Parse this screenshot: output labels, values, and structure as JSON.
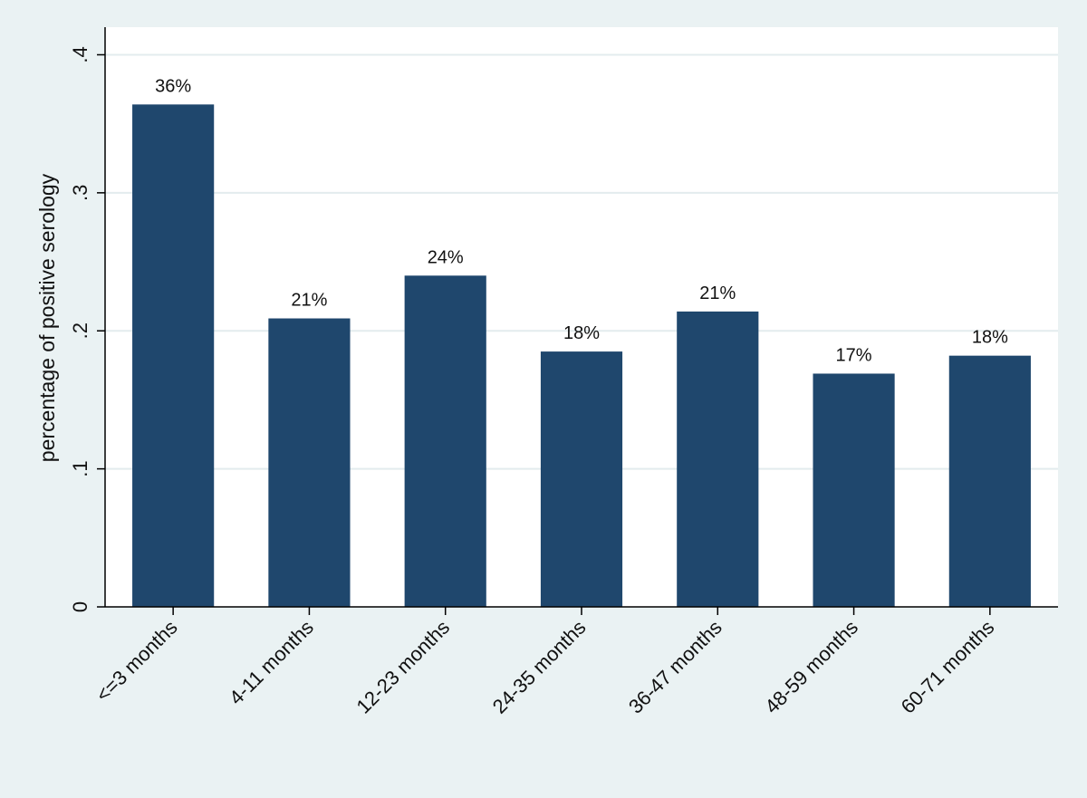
{
  "chart_data": {
    "type": "bar",
    "title": "",
    "xlabel": "",
    "ylabel": "percentage of positive serology",
    "categories": [
      "<=3 months",
      "4-11 months",
      "12-23 months",
      "24-35 months",
      "36-47 months",
      "48-59 months",
      "60-71 months"
    ],
    "values": [
      0.364,
      0.209,
      0.24,
      0.185,
      0.214,
      0.169,
      0.182
    ],
    "data_labels": [
      "36%",
      "21%",
      "24%",
      "18%",
      "21%",
      "17%",
      "18%"
    ],
    "ylim": [
      0,
      0.42
    ],
    "yticks": [
      0,
      0.1,
      0.2,
      0.3,
      0.4
    ],
    "ytick_labels": [
      "0",
      ".1",
      ".2",
      ".3",
      ".4"
    ],
    "grid": true,
    "legend": "none",
    "colors": {
      "bar": "#1f476d",
      "plot_background": "#ffffff",
      "outer_background": "#eaf2f3",
      "grid": "#e3ecee",
      "axis": "#000000"
    }
  }
}
